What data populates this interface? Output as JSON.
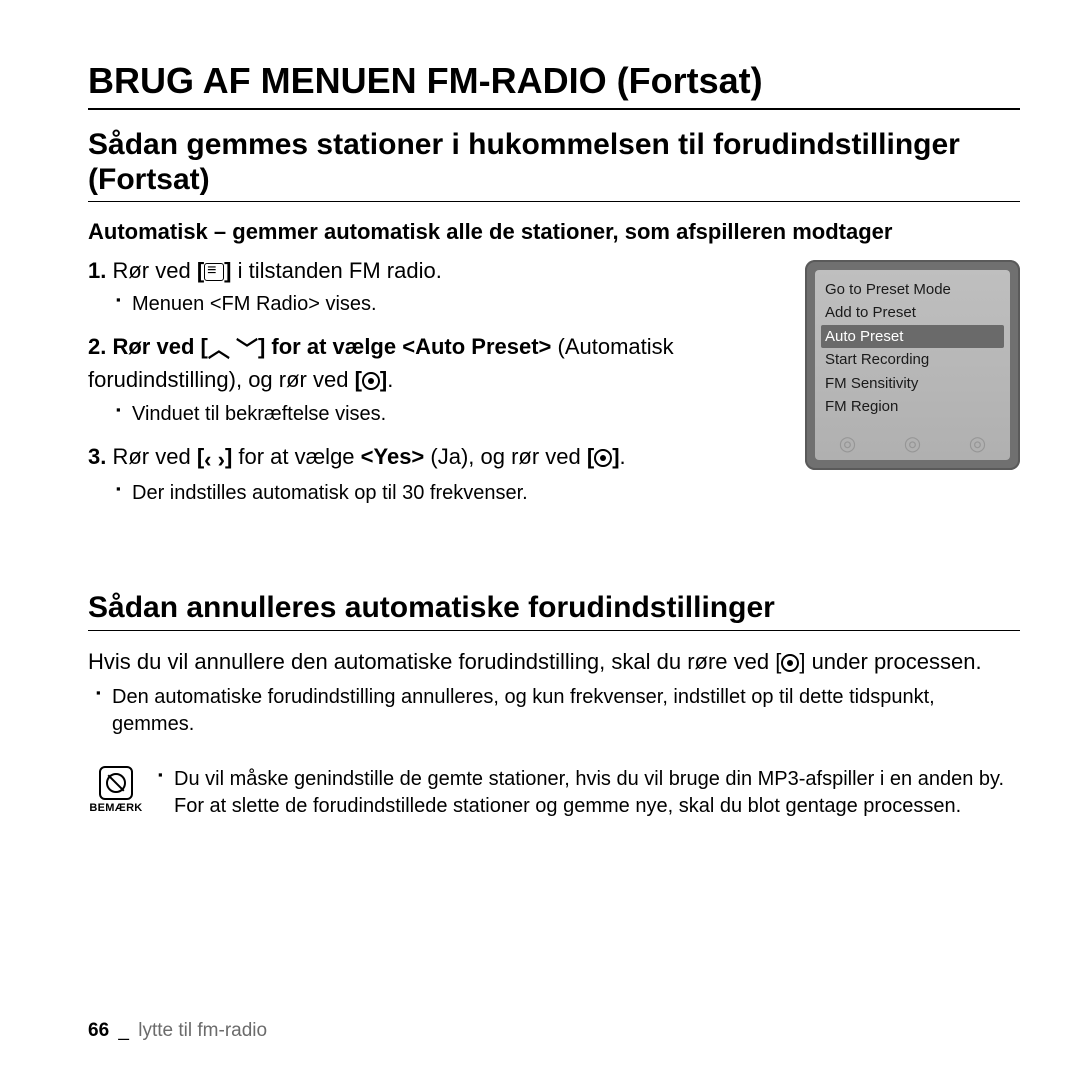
{
  "page_title": "BRUG AF MENUEN FM-RADIO (Fortsat)",
  "section1_title": "Sådan gemmes stationer i hukommelsen til forudindstillinger (Fortsat)",
  "subhead": "Automatisk – gemmer automatisk alle de stationer, som afspilleren modtager",
  "steps": {
    "s1": {
      "num": "1.",
      "pre": "Rør ved ",
      "bracket_open": "[",
      "bracket_close": "]",
      "post": " i tilstanden FM radio.",
      "sub": "Menuen <FM Radio> vises."
    },
    "s2": {
      "num": "2.",
      "pre_bold": "Rør ved [",
      "arrows": "︿ ﹀",
      "mid_bold": "] for at vælge <Auto Preset>",
      "plain1": " (Automatisk forudindstilling), og rør ved ",
      "bo": "[",
      "bc": "]",
      "plain2": ".",
      "sub": "Vinduet til bekræftelse vises."
    },
    "s3": {
      "num": "3.",
      "pre": "Rør ved ",
      "bo1": "[",
      "arrows": "‹  ›",
      "bc1": "]",
      "mid": " for at vælge ",
      "yes": "<Yes>",
      "post": " (Ja), og rør ved ",
      "bo2": "[",
      "bc2": "]",
      "end": ".",
      "sub": "Der indstilles automatisk op til 30 frekvenser."
    }
  },
  "device_menu": [
    "Go to Preset Mode",
    "Add to Preset",
    "Auto Preset",
    "Start Recording",
    "FM Sensitivity",
    "FM Region"
  ],
  "device_selected_index": 2,
  "section2_title": "Sådan annulleres automatiske forudindstillinger",
  "para_pre": "Hvis du vil annullere den automatiske forudindstilling, skal du røre ved [",
  "para_post": "] under processen.",
  "para_sub": "Den automatiske forudindstilling annulleres, og kun frekvenser, indstillet op til dette tidspunkt, gemmes.",
  "note_label": "BEMÆRK",
  "note_text": "Du vil måske genindstille de gemte stationer, hvis du vil bruge din MP3-afspiller i en anden by. For at slette de forudindstillede stationer og gemme nye, skal du blot gentage processen.",
  "footer": {
    "page": "66",
    "sep": "_",
    "crumb": "lytte til fm-radio"
  }
}
